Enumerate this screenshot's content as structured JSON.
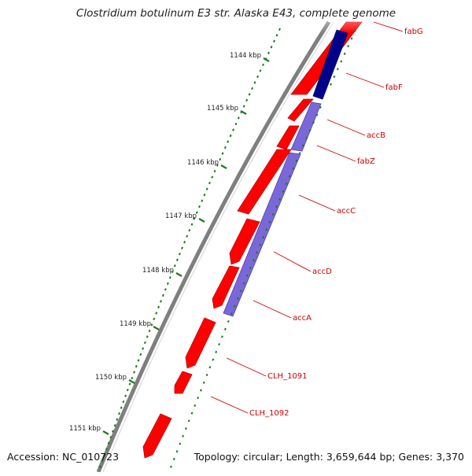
{
  "title": "Clostridium botulinum E3 str. Alaska E43, complete genome",
  "footer": {
    "accession": "Accession: NC_010723",
    "topology": "Topology: circular; Length: 3,659,644 bp; Genes: 3,370"
  },
  "ticks": [
    "1144 kbp",
    "1145 kbp",
    "1146 kbp",
    "1147 kbp",
    "1148 kbp",
    "1149 kbp",
    "1150 kbp",
    "1151 kbp"
  ],
  "genes": [
    "fabG",
    "fabF",
    "accB",
    "fabZ",
    "accC",
    "accD",
    "accA",
    "CLH_1091",
    "CLH_1092"
  ],
  "colors": {
    "label": "#cc0000",
    "gene_red": "#ff0000",
    "gene_red_dark": "#b30000",
    "gene_blue": "#7b68d8",
    "gene_blue_dark": "#00008b",
    "tick_green": "#1a7a1a",
    "backbone": "#7f7f7f"
  }
}
